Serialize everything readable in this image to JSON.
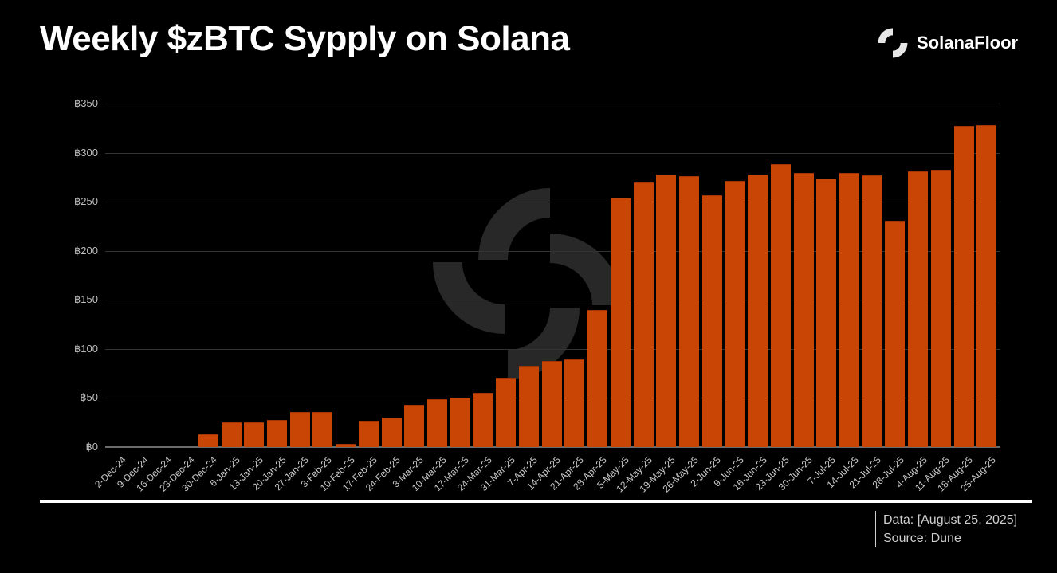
{
  "header": {
    "title": "Weekly $zBTC Sypply on Solana",
    "brand": "SolanaFloor",
    "brand_icon": "solanafloor-logo-icon"
  },
  "footer": {
    "data_date": "Data: [August 25, 2025]",
    "source": "Source: Dune"
  },
  "colors": {
    "background": "#000000",
    "bar": "#c84505",
    "gridline": "#333333",
    "text": "#ffffff",
    "axis_text": "#bdbdbd"
  },
  "chart_data": {
    "type": "bar",
    "title": "Weekly $zBTC Sypply on Solana",
    "xlabel": "",
    "ylabel": "",
    "ylim": [
      0,
      350
    ],
    "yticks": [
      0,
      50,
      100,
      150,
      200,
      250,
      300,
      350
    ],
    "ytick_labels": [
      "฿0",
      "฿50",
      "฿100",
      "฿150",
      "฿200",
      "฿250",
      "฿300",
      "฿350"
    ],
    "grid": true,
    "legend": null,
    "categories": [
      "2-Dec-24",
      "9-Dec-24",
      "16-Dec-24",
      "23-Dec-24",
      "30-Dec-24",
      "6-Jan-25",
      "13-Jan-25",
      "20-Jan-25",
      "27-Jan-25",
      "3-Feb-25",
      "10-Feb-25",
      "17-Feb-25",
      "24-Feb-25",
      "3-Mar-25",
      "10-Mar-25",
      "17-Mar-25",
      "24-Mar-25",
      "31-Mar-25",
      "7-Apr-25",
      "14-Apr-25",
      "21-Apr-25",
      "28-Apr-25",
      "5-May-25",
      "12-May-25",
      "19-May-25",
      "26-May-25",
      "2-Jun-25",
      "9-Jun-25",
      "16-Jun-25",
      "23-Jun-25",
      "30-Jun-25",
      "7-Jul-25",
      "14-Jul-25",
      "21-Jul-25",
      "28-Jul-25",
      "4-Aug-25",
      "11-Aug-25",
      "18-Aug-25",
      "25-Aug-25"
    ],
    "values": [
      0,
      0,
      0,
      0,
      13,
      25,
      25,
      28,
      36,
      36,
      3,
      27,
      30,
      43,
      49,
      50,
      55,
      71,
      83,
      88,
      89,
      140,
      254,
      270,
      278,
      276,
      257,
      271,
      278,
      288,
      279,
      274,
      279,
      277,
      231,
      281,
      283,
      327,
      328
    ]
  }
}
